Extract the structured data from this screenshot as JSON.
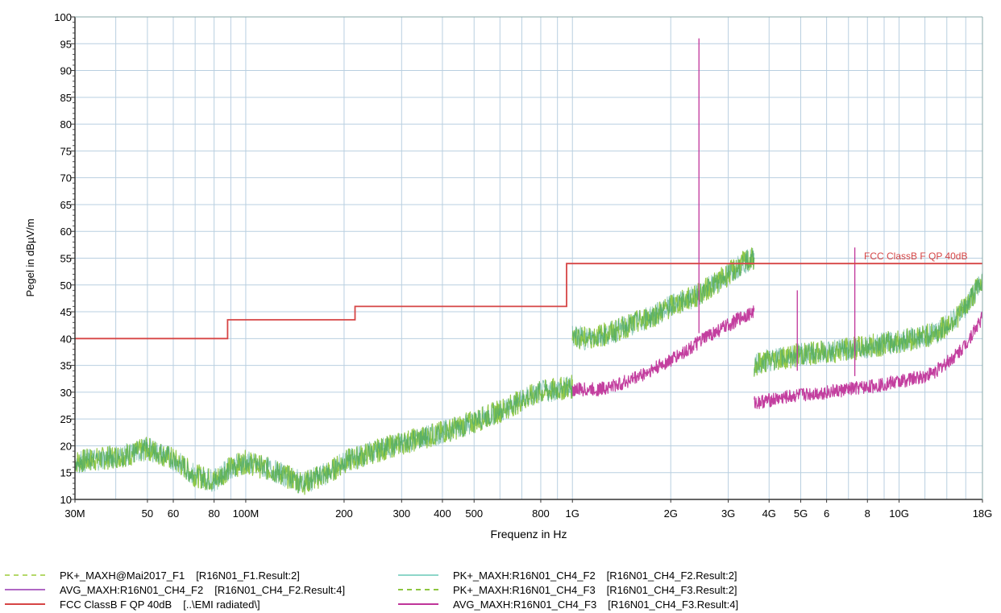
{
  "chart_data": {
    "type": "line",
    "xlabel": "Frequenz in Hz",
    "ylabel": "Pegel in dBµV/m",
    "xscale": "log",
    "xlim": [
      30000000,
      18000000000
    ],
    "ylim": [
      10,
      100
    ],
    "grid": true,
    "y_ticks": [
      "10",
      "15",
      "20",
      "25",
      "30",
      "35",
      "40",
      "45",
      "50",
      "55",
      "60",
      "65",
      "70",
      "75",
      "80",
      "85",
      "90",
      "95",
      "100"
    ],
    "x_ticks": [
      {
        "label": "30M",
        "value": 30000000
      },
      {
        "label": "50",
        "value": 50000000
      },
      {
        "label": "60",
        "value": 60000000
      },
      {
        "label": "80",
        "value": 80000000
      },
      {
        "label": "100M",
        "value": 100000000
      },
      {
        "label": "200",
        "value": 200000000
      },
      {
        "label": "300",
        "value": 300000000
      },
      {
        "label": "400",
        "value": 400000000
      },
      {
        "label": "500",
        "value": 500000000
      },
      {
        "label": "800",
        "value": 800000000
      },
      {
        "label": "1G",
        "value": 1000000000
      },
      {
        "label": "2G",
        "value": 2000000000
      },
      {
        "label": "3G",
        "value": 3000000000
      },
      {
        "label": "4G",
        "value": 4000000000
      },
      {
        "label": "5G",
        "value": 5000000000
      },
      {
        "label": "6",
        "value": 6000000000
      },
      {
        "label": "8",
        "value": 8000000000
      },
      {
        "label": "10G",
        "value": 10000000000
      },
      {
        "label": "18G",
        "value": 18000000000
      }
    ],
    "limit_line": {
      "label": "FCC ClassB F QP 40dB",
      "color": "#d64545",
      "segments": [
        {
          "x0": 30000000,
          "x1": 88000000,
          "y": 40
        },
        {
          "x0": 88000000,
          "x1": 216000000,
          "y": 43.5
        },
        {
          "x0": 216000000,
          "x1": 960000000,
          "y": 46
        },
        {
          "x0": 960000000,
          "x1": 18000000000,
          "y": 54
        }
      ]
    },
    "series": [
      {
        "name": "PK+_MAXH@Mai2017_F1",
        "color": "#8cc63f",
        "x": [
          30000000,
          35000000,
          40000000,
          45000000,
          50000000,
          55000000,
          60000000,
          70000000,
          80000000,
          90000000,
          100000000,
          120000000,
          150000000,
          180000000,
          200000000,
          250000000,
          300000000,
          400000000,
          500000000,
          600000000,
          700000000,
          800000000,
          1000000000
        ],
        "y": [
          17,
          17.5,
          18,
          18.5,
          19.5,
          18.5,
          17.5,
          14.5,
          13.5,
          16,
          17,
          15.5,
          13,
          15,
          17,
          19,
          20.5,
          22.5,
          24.5,
          26.5,
          28.5,
          30,
          31
        ]
      },
      {
        "name": "PK+_MAXH:R16N01_CH4_F2",
        "color": "#8cc63f",
        "x": [
          1000000000,
          1100000000,
          1300000000,
          1500000000,
          1800000000,
          2000000000,
          2400000000,
          2700000000,
          3000000000,
          3300000000,
          3600000000
        ],
        "y": [
          40.5,
          40,
          41,
          42.5,
          44.5,
          46,
          48,
          50,
          52,
          54,
          55
        ]
      },
      {
        "name": "PK+_MAXH:R16N01_CH4_F3",
        "color": "#8cc63f",
        "x": [
          3600000000,
          4000000000,
          5000000000,
          6000000000,
          7000000000,
          8000000000,
          9000000000,
          10000000000,
          11000000000,
          12000000000,
          13000000000,
          14000000000,
          15000000000,
          16000000000,
          17000000000,
          18000000000
        ],
        "y": [
          35,
          36,
          37,
          37.5,
          38,
          38.5,
          39,
          39.5,
          40,
          40.5,
          41,
          42.5,
          44,
          46,
          48.5,
          51
        ]
      },
      {
        "name": "AVG_MAXH:R16N01_CH4_F2",
        "color": "#c0359a",
        "x": [
          1000000000,
          1200000000,
          1400000000,
          1600000000,
          1800000000,
          2000000000,
          2200000000,
          2400000000,
          2600000000,
          2800000000,
          3000000000,
          3300000000,
          3600000000
        ],
        "y": [
          30.5,
          30.5,
          31.5,
          33,
          34.5,
          36,
          37.5,
          39,
          40.5,
          41.5,
          42.5,
          44,
          45
        ]
      },
      {
        "name": "AVG_MAXH:R16N01_CH4_F3",
        "color": "#c0359a",
        "x": [
          3600000000,
          4000000000,
          5000000000,
          6000000000,
          7000000000,
          8000000000,
          9000000000,
          10000000000,
          11000000000,
          12000000000,
          13000000000,
          14000000000,
          15000000000,
          16000000000,
          17000000000,
          18000000000
        ],
        "y": [
          28,
          28.5,
          29.5,
          30,
          30.5,
          31,
          31.5,
          32,
          32.5,
          33,
          34,
          35.5,
          37,
          39,
          41.5,
          44
        ]
      }
    ],
    "spikes": [
      {
        "x": 2440000000,
        "y": 96,
        "base": 41,
        "color": "#c0359a"
      },
      {
        "x": 4880000000,
        "y": 49,
        "base": 34,
        "color": "#c0359a"
      },
      {
        "x": 7320000000,
        "y": 57,
        "base": 33,
        "color": "#c0359a"
      }
    ]
  },
  "legend": {
    "items": [
      {
        "name": "PK+_MAXH@Mai2017_F1",
        "source": "[R16N01_F1.Result:2]",
        "color": "#b5d86a",
        "style": "dashed"
      },
      {
        "name": "AVG_MAXH:R16N01_CH4_F2",
        "source": "[R16N01_CH4_F2.Result:4]",
        "color": "#b067c4",
        "style": "solid"
      },
      {
        "name": "FCC ClassB F QP 40dB",
        "source": "[..\\EMI radiated\\]",
        "color": "#d64545",
        "style": "solid"
      },
      {
        "name": "PK+_MAXH:R16N01_CH4_F2",
        "source": "[R16N01_CH4_F2.Result:2]",
        "color": "#8ed6c9",
        "style": "solid"
      },
      {
        "name": "PK+_MAXH:R16N01_CH4_F3",
        "source": "[R16N01_CH4_F3.Result:2]",
        "color": "#8cc63f",
        "style": "dashed"
      },
      {
        "name": "AVG_MAXH:R16N01_CH4_F3",
        "source": "[R16N01_CH4_F3.Result:4]",
        "color": "#c0359a",
        "style": "solid"
      }
    ]
  }
}
